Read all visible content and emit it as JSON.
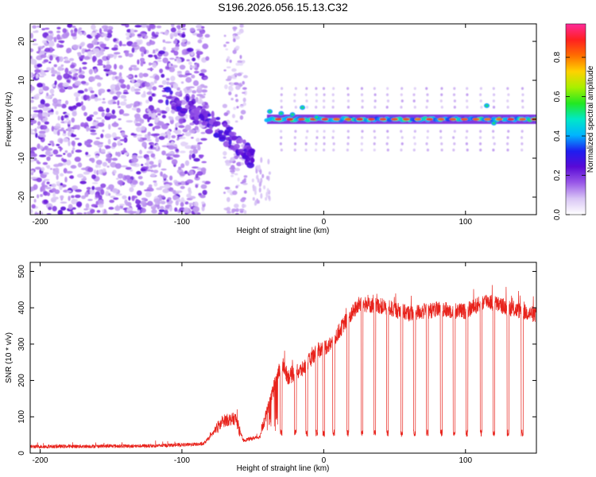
{
  "title": "S196.2026.056.15.13.C32",
  "chart_data": [
    {
      "type": "heatmap",
      "name": "spectrogram",
      "xlabel": "Height of straight line (km)",
      "ylabel": "Frequency (Hz)",
      "xlim": [
        -207,
        150
      ],
      "ylim": [
        -24.5,
        24.5
      ],
      "xticks": [
        -200,
        -100,
        0,
        100
      ],
      "yticks": [
        -20,
        -10,
        0,
        10,
        20
      ],
      "colorbar": {
        "label": "Normalized spectral amplitude",
        "range": [
          0,
          0.97
        ],
        "ticks": [
          0.0,
          0.2,
          0.4,
          0.6,
          0.8
        ],
        "tick_labels": [
          "0.0",
          "0.2",
          "0.4",
          "0.6",
          "0.8"
        ],
        "colormap": [
          "#ffffff",
          "#d9c6f5",
          "#9a59e8",
          "#5a0ad6",
          "#1e1ef0",
          "#00b4ff",
          "#00e8c8",
          "#22e822",
          "#a8f000",
          "#ffd200",
          "#ff6e00",
          "#ff2020",
          "#ff2a9a"
        ]
      },
      "features": {
        "noise_region_km": [
          -207,
          -82
        ],
        "sparse_noise_region_km": [
          -70,
          -55
        ],
        "descending_trace": [
          [
            -110,
            6
          ],
          [
            -95,
            3
          ],
          [
            -85,
            0
          ],
          [
            -75,
            -2
          ],
          [
            -65,
            -5
          ],
          [
            -55,
            -8
          ],
          [
            -50,
            -10
          ]
        ],
        "carrier_start_km": -40,
        "carrier_frequency_hz": 0,
        "carrier_blips": [
          [
            -38,
            2
          ],
          [
            -30,
            1.5
          ],
          [
            -22,
            1.2
          ],
          [
            -15,
            3
          ],
          [
            -5,
            0.5
          ],
          [
            115,
            3.5
          ],
          [
            120,
            -1
          ]
        ]
      }
    },
    {
      "type": "line",
      "name": "snr",
      "xlabel": "Height of straight line (km)",
      "ylabel": "SNR (10 * v/v)",
      "xlim": [
        -207,
        150
      ],
      "ylim": [
        0,
        525
      ],
      "xticks": [
        -200,
        -100,
        0,
        100
      ],
      "yticks": [
        0,
        100,
        200,
        300,
        400,
        500
      ],
      "color": "#e8231c",
      "profile": [
        [
          -207,
          18
        ],
        [
          -120,
          20
        ],
        [
          -85,
          25
        ],
        [
          -80,
          45
        ],
        [
          -75,
          70
        ],
        [
          -70,
          90
        ],
        [
          -62,
          95
        ],
        [
          -57,
          35
        ],
        [
          -45,
          45
        ],
        [
          -35,
          180
        ],
        [
          -30,
          250
        ],
        [
          -25,
          210
        ],
        [
          -15,
          230
        ],
        [
          -5,
          280
        ],
        [
          5,
          300
        ],
        [
          15,
          360
        ],
        [
          25,
          410
        ],
        [
          40,
          405
        ],
        [
          60,
          385
        ],
        [
          80,
          395
        ],
        [
          100,
          390
        ],
        [
          115,
          420
        ],
        [
          130,
          400
        ],
        [
          150,
          380
        ]
      ],
      "dropouts_km": [
        -30,
        -20,
        -12,
        -5,
        0,
        7,
        17,
        27,
        36,
        45,
        55,
        64,
        73,
        83,
        92,
        101,
        111,
        120,
        130,
        140
      ],
      "dropout_floor": 45
    }
  ]
}
